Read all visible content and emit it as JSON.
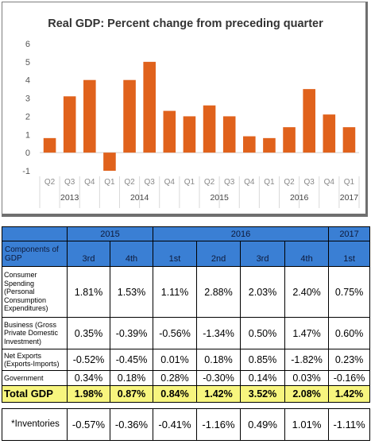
{
  "chart_data": {
    "type": "bar",
    "title": "Real GDP:  Percent change from preceding quarter",
    "categories": [
      "Q2",
      "Q3",
      "Q4",
      "Q1",
      "Q2",
      "Q3",
      "Q4",
      "Q1",
      "Q2",
      "Q3",
      "Q4",
      "Q1",
      "Q2",
      "Q3",
      "Q4",
      "Q1"
    ],
    "years": [
      {
        "label": "2013",
        "start": 0,
        "end": 2
      },
      {
        "label": "2014",
        "start": 3,
        "end": 6
      },
      {
        "label": "2015",
        "start": 7,
        "end": 10
      },
      {
        "label": "2016",
        "start": 11,
        "end": 14
      },
      {
        "label": "2017",
        "start": 15,
        "end": 15
      }
    ],
    "values": [
      0.8,
      3.1,
      4.0,
      -1.0,
      4.0,
      5.0,
      2.3,
      2.0,
      2.6,
      2.0,
      0.9,
      0.8,
      1.4,
      3.5,
      2.1,
      1.4
    ],
    "ylim": [
      -1,
      6
    ],
    "yticks": [
      -1,
      0,
      1,
      2,
      3,
      4,
      5,
      6
    ],
    "bar_color": "#e0621c",
    "grid": false,
    "xlabel": "",
    "ylabel": ""
  },
  "table": {
    "years": [
      {
        "label": "2015",
        "span": 2
      },
      {
        "label": "2016",
        "span": 4
      },
      {
        "label": "2017",
        "span": 1
      }
    ],
    "components_header": "Components of GDP",
    "quarters": [
      "3rd",
      "4th",
      "1st",
      "2nd",
      "3rd",
      "4th",
      "1st"
    ],
    "rows": [
      {
        "label": "Consumer Spending (Personal Consumption Expenditures)",
        "values": [
          "1.81%",
          "1.53%",
          "1.11%",
          "2.88%",
          "2.03%",
          "2.40%",
          "0.75%"
        ]
      },
      {
        "label": "Business (Gross Private Domestic Investment)",
        "values": [
          "0.35%",
          "-0.39%",
          "-0.56%",
          "-1.34%",
          "0.50%",
          "1.47%",
          "0.60%"
        ]
      },
      {
        "label": "Net Exports (Exports-Imports)",
        "values": [
          "-0.52%",
          "-0.45%",
          "0.01%",
          "0.18%",
          "0.85%",
          "-1.82%",
          "0.23%"
        ]
      },
      {
        "label": "Government",
        "values": [
          "0.34%",
          "0.18%",
          "0.28%",
          "-0.30%",
          "0.14%",
          "0.03%",
          "-0.16%"
        ]
      }
    ],
    "total": {
      "label": "Total GDP",
      "values": [
        "1.98%",
        "0.87%",
        "0.84%",
        "1.42%",
        "3.52%",
        "2.08%",
        "1.42%"
      ]
    },
    "inventories": {
      "label": "*Inventories",
      "values": [
        "-0.57%",
        "-0.36%",
        "-0.41%",
        "-1.16%",
        "0.49%",
        "1.01%",
        "-1.11%"
      ]
    }
  }
}
